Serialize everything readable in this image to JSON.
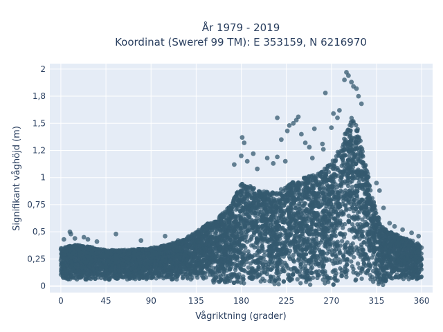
{
  "chart_data": {
    "type": "scatter",
    "title_lines": [
      "År 1979 - 2019",
      "Koordinat (Sweref 99 TM): E 353159, N 6216970"
    ],
    "xlabel": "Vågriktning (grader)",
    "ylabel": "Signifikant våghöjd (m)",
    "xlim": [
      -11,
      371
    ],
    "ylim": [
      -0.06,
      2.05
    ],
    "xticks": [
      0,
      45,
      90,
      135,
      180,
      225,
      270,
      315,
      360
    ],
    "xtick_labels": [
      "0",
      "45",
      "90",
      "135",
      "180",
      "225",
      "270",
      "315",
      "360"
    ],
    "yticks": [
      0,
      0.25,
      0.5,
      0.75,
      1,
      1.25,
      1.5,
      1.75,
      2
    ],
    "ytick_labels": [
      "0",
      "0,25",
      "0,5",
      "0,75",
      "1",
      "1,2",
      "1,5",
      "1,8",
      "2"
    ],
    "grid": true,
    "plot_background": "#e5ecf6",
    "marker_color": "#34596f",
    "marker_opacity": 0.75,
    "envelope": {
      "direction": [
        0,
        15,
        30,
        45,
        60,
        75,
        90,
        105,
        120,
        135,
        150,
        160,
        170,
        175,
        180,
        190,
        200,
        210,
        220,
        230,
        240,
        250,
        260,
        270,
        280,
        285,
        290,
        295,
        300,
        305,
        310,
        315,
        320,
        330,
        340,
        350,
        360
      ],
      "max_height": [
        0.35,
        0.38,
        0.36,
        0.33,
        0.33,
        0.34,
        0.35,
        0.38,
        0.42,
        0.5,
        0.6,
        0.66,
        0.75,
        0.85,
        0.95,
        0.92,
        0.88,
        0.86,
        0.9,
        0.95,
        1.0,
        1.02,
        1.05,
        1.15,
        1.3,
        1.45,
        1.55,
        1.5,
        1.3,
        1.1,
        0.85,
        0.7,
        0.55,
        0.5,
        0.45,
        0.42,
        0.38
      ]
    },
    "outliers": [
      {
        "x": 3,
        "y": 0.43
      },
      {
        "x": 10,
        "y": 0.48
      },
      {
        "x": 9,
        "y": 0.5
      },
      {
        "x": 14,
        "y": 0.44
      },
      {
        "x": 23,
        "y": 0.45
      },
      {
        "x": 27,
        "y": 0.43
      },
      {
        "x": 55,
        "y": 0.48
      },
      {
        "x": 36,
        "y": 0.41
      },
      {
        "x": 80,
        "y": 0.42
      },
      {
        "x": 104,
        "y": 0.46
      },
      {
        "x": 117,
        "y": 0.42
      },
      {
        "x": 173,
        "y": 1.12
      },
      {
        "x": 180,
        "y": 1.2
      },
      {
        "x": 181,
        "y": 1.37
      },
      {
        "x": 183,
        "y": 1.32
      },
      {
        "x": 186,
        "y": 1.15
      },
      {
        "x": 192,
        "y": 1.22
      },
      {
        "x": 196,
        "y": 1.08
      },
      {
        "x": 206,
        "y": 1.18
      },
      {
        "x": 212,
        "y": 1.13
      },
      {
        "x": 216,
        "y": 1.19
      },
      {
        "x": 216,
        "y": 1.55
      },
      {
        "x": 220,
        "y": 1.35
      },
      {
        "x": 224,
        "y": 1.15
      },
      {
        "x": 226,
        "y": 1.43
      },
      {
        "x": 228,
        "y": 1.48
      },
      {
        "x": 232,
        "y": 1.5
      },
      {
        "x": 235,
        "y": 1.53
      },
      {
        "x": 237,
        "y": 1.56
      },
      {
        "x": 240,
        "y": 1.4
      },
      {
        "x": 244,
        "y": 1.32
      },
      {
        "x": 248,
        "y": 1.28
      },
      {
        "x": 251,
        "y": 1.18
      },
      {
        "x": 253,
        "y": 1.45
      },
      {
        "x": 261,
        "y": 1.31
      },
      {
        "x": 262,
        "y": 1.26
      },
      {
        "x": 264,
        "y": 1.78
      },
      {
        "x": 270,
        "y": 1.46
      },
      {
        "x": 272,
        "y": 1.59
      },
      {
        "x": 276,
        "y": 1.55
      },
      {
        "x": 278,
        "y": 1.62
      },
      {
        "x": 285,
        "y": 1.97
      },
      {
        "x": 287,
        "y": 1.94
      },
      {
        "x": 290,
        "y": 1.88
      },
      {
        "x": 292,
        "y": 1.84
      },
      {
        "x": 295,
        "y": 1.82
      },
      {
        "x": 297,
        "y": 1.75
      },
      {
        "x": 300,
        "y": 1.68
      },
      {
        "x": 283,
        "y": 1.9
      },
      {
        "x": 315,
        "y": 0.95
      },
      {
        "x": 318,
        "y": 0.88
      },
      {
        "x": 322,
        "y": 0.72
      },
      {
        "x": 328,
        "y": 0.58
      },
      {
        "x": 333,
        "y": 0.55
      },
      {
        "x": 341,
        "y": 0.52
      },
      {
        "x": 350,
        "y": 0.49
      },
      {
        "x": 357,
        "y": 0.46
      }
    ]
  }
}
